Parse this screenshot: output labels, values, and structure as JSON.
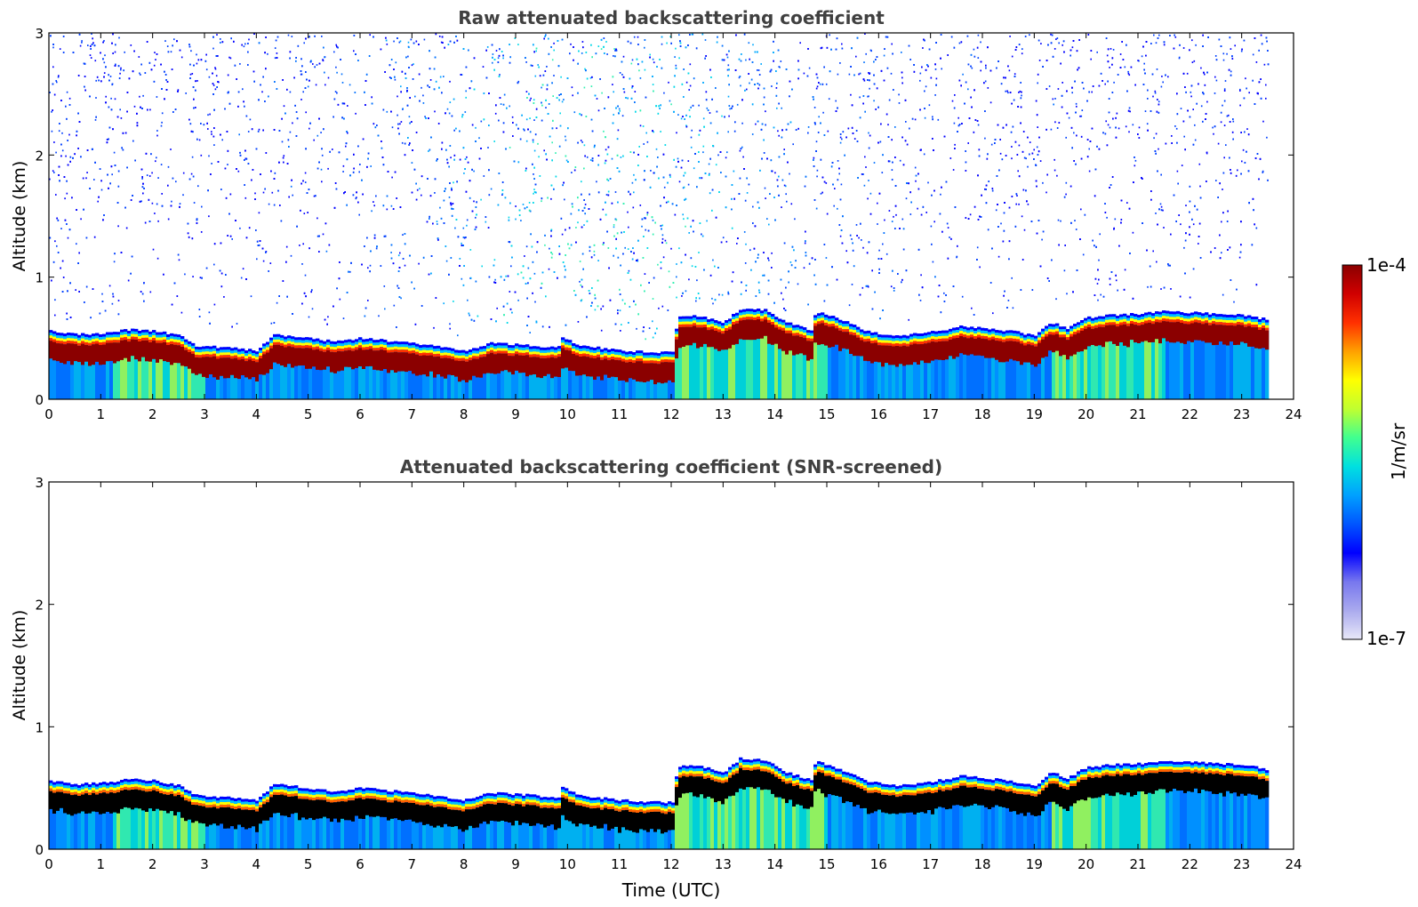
{
  "chart_data": [
    {
      "type": "heatmap",
      "title": "Raw attenuated backscattering coefficient",
      "xlabel": "",
      "ylabel": "Altitude (km)",
      "xlim": [
        0,
        24
      ],
      "ylim": [
        0,
        3
      ],
      "xticks": [
        "0",
        "1",
        "2",
        "3",
        "4",
        "5",
        "6",
        "7",
        "8",
        "9",
        "10",
        "11",
        "12",
        "13",
        "14",
        "15",
        "16",
        "17",
        "18",
        "19",
        "20",
        "21",
        "22",
        "23",
        "24"
      ],
      "yticks": [
        "0",
        "1",
        "2",
        "3"
      ],
      "data_end_hour": 23.5,
      "noise": true,
      "saturated_color": "#8b0000",
      "layer_top_km": [
        [
          0,
          0.56
        ],
        [
          0.5,
          0.53
        ],
        [
          1,
          0.54
        ],
        [
          1.5,
          0.57
        ],
        [
          2,
          0.56
        ],
        [
          2.5,
          0.52
        ],
        [
          2.8,
          0.44
        ],
        [
          3.5,
          0.42
        ],
        [
          4,
          0.4
        ],
        [
          4.3,
          0.53
        ],
        [
          5,
          0.5
        ],
        [
          5.5,
          0.47
        ],
        [
          6,
          0.5
        ],
        [
          7,
          0.46
        ],
        [
          7.5,
          0.43
        ],
        [
          8,
          0.4
        ],
        [
          8.5,
          0.46
        ],
        [
          9,
          0.45
        ],
        [
          9.8,
          0.42
        ],
        [
          9.85,
          0.51
        ],
        [
          10.2,
          0.44
        ],
        [
          11,
          0.4
        ],
        [
          12,
          0.38
        ],
        [
          12.1,
          0.68
        ],
        [
          12.5,
          0.68
        ],
        [
          13,
          0.63
        ],
        [
          13.3,
          0.74
        ],
        [
          13.8,
          0.73
        ],
        [
          14.2,
          0.63
        ],
        [
          14.7,
          0.56
        ],
        [
          14.75,
          0.72
        ],
        [
          15.2,
          0.66
        ],
        [
          15.8,
          0.55
        ],
        [
          16.3,
          0.52
        ],
        [
          17,
          0.55
        ],
        [
          17.6,
          0.6
        ],
        [
          18,
          0.58
        ],
        [
          18.5,
          0.56
        ],
        [
          19,
          0.52
        ],
        [
          19.3,
          0.63
        ],
        [
          19.6,
          0.58
        ],
        [
          20,
          0.67
        ],
        [
          20.5,
          0.69
        ],
        [
          21,
          0.7
        ],
        [
          21.5,
          0.72
        ],
        [
          22,
          0.71
        ],
        [
          23,
          0.69
        ],
        [
          23.5,
          0.65
        ]
      ],
      "colorbar": {
        "min_label": "1e-7",
        "max_label": "1e-4",
        "unit": "1/m/sr"
      }
    },
    {
      "type": "heatmap",
      "title": "Attenuated backscattering coefficient (SNR-screened)",
      "xlabel": "Time (UTC)",
      "ylabel": "Altitude (km)",
      "xlim": [
        0,
        24
      ],
      "ylim": [
        0,
        3
      ],
      "xticks": [
        "0",
        "1",
        "2",
        "3",
        "4",
        "5",
        "6",
        "7",
        "8",
        "9",
        "10",
        "11",
        "12",
        "13",
        "14",
        "15",
        "16",
        "17",
        "18",
        "19",
        "20",
        "21",
        "22",
        "23",
        "24"
      ],
      "yticks": [
        "0",
        "1",
        "2",
        "3"
      ],
      "data_end_hour": 23.5,
      "noise": false,
      "saturated_color": "#000000",
      "layer_top_km": [
        [
          0,
          0.56
        ],
        [
          0.5,
          0.53
        ],
        [
          1,
          0.54
        ],
        [
          1.5,
          0.57
        ],
        [
          2,
          0.56
        ],
        [
          2.5,
          0.52
        ],
        [
          2.8,
          0.44
        ],
        [
          3.5,
          0.42
        ],
        [
          4,
          0.4
        ],
        [
          4.3,
          0.53
        ],
        [
          5,
          0.5
        ],
        [
          5.5,
          0.47
        ],
        [
          6,
          0.5
        ],
        [
          7,
          0.46
        ],
        [
          7.5,
          0.43
        ],
        [
          8,
          0.4
        ],
        [
          8.5,
          0.46
        ],
        [
          9,
          0.45
        ],
        [
          9.8,
          0.42
        ],
        [
          9.85,
          0.51
        ],
        [
          10.2,
          0.44
        ],
        [
          11,
          0.4
        ],
        [
          12,
          0.38
        ],
        [
          12.1,
          0.68
        ],
        [
          12.5,
          0.68
        ],
        [
          13,
          0.63
        ],
        [
          13.3,
          0.74
        ],
        [
          13.8,
          0.73
        ],
        [
          14.2,
          0.63
        ],
        [
          14.7,
          0.56
        ],
        [
          14.75,
          0.72
        ],
        [
          15.2,
          0.66
        ],
        [
          15.8,
          0.55
        ],
        [
          16.3,
          0.52
        ],
        [
          17,
          0.55
        ],
        [
          17.6,
          0.6
        ],
        [
          18,
          0.58
        ],
        [
          18.5,
          0.56
        ],
        [
          19,
          0.52
        ],
        [
          19.3,
          0.63
        ],
        [
          19.6,
          0.58
        ],
        [
          20,
          0.67
        ],
        [
          20.5,
          0.69
        ],
        [
          21,
          0.7
        ],
        [
          21.5,
          0.72
        ],
        [
          22,
          0.71
        ],
        [
          23,
          0.69
        ],
        [
          23.5,
          0.65
        ]
      ],
      "colorbar": {
        "min_label": "1e-7",
        "max_label": "1e-4",
        "unit": "1/m/sr"
      }
    }
  ],
  "colorbar": {
    "min_label": "1e-7",
    "max_label": "1e-4",
    "unit": "1/m/sr",
    "stops": [
      "#e8e8f8",
      "#aaaaee",
      "#7777ee",
      "#0000ff",
      "#0055ff",
      "#00a0ff",
      "#00e0e0",
      "#40ff90",
      "#c0ff30",
      "#ffff00",
      "#ffa000",
      "#ff3000",
      "#d00000",
      "#8b0000"
    ]
  }
}
